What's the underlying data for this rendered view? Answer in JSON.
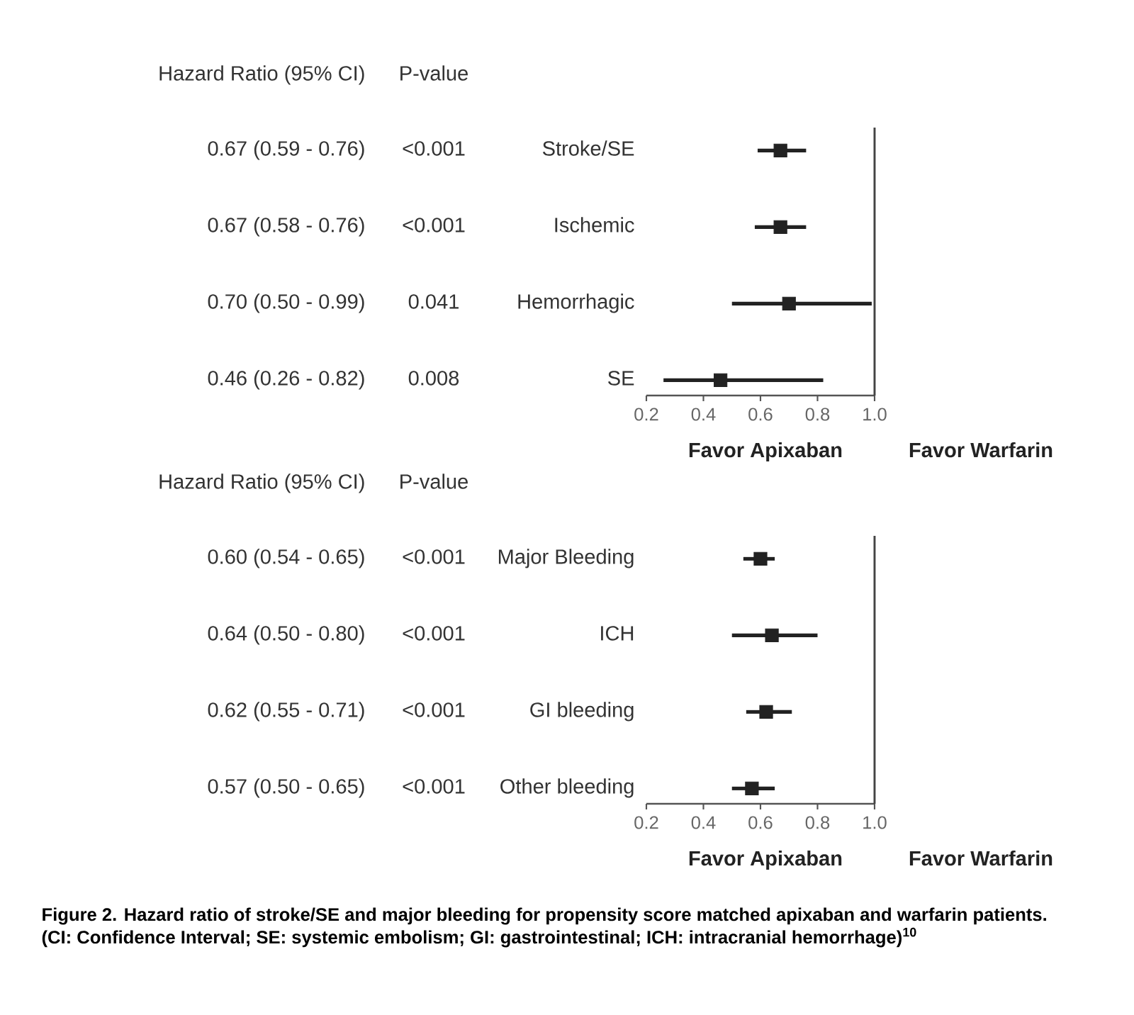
{
  "chart_data": [
    {
      "type": "scatter",
      "orientation": "horizontal",
      "categories": [
        "Stroke/SE",
        "Ischemic",
        "Hemorrhagic",
        "SE"
      ],
      "values": [
        0.67,
        0.67,
        0.7,
        0.46
      ],
      "errors": [
        [
          0.59,
          0.76
        ],
        [
          0.58,
          0.76
        ],
        [
          0.5,
          0.99
        ],
        [
          0.26,
          0.82
        ]
      ],
      "value_labels": [
        "0.67 (0.59 - 0.76)",
        "0.67 (0.58 - 0.76)",
        "0.70 (0.50 - 0.99)",
        "0.46 (0.26 - 0.82)"
      ],
      "color": "#222222",
      "marker": "square",
      "xlim": [
        0.2,
        1.0
      ],
      "xticks": [
        0.2,
        0.4,
        0.6,
        0.8,
        {
          "value": 1.0,
          "label": "1.0"
        }
      ],
      "ref_lines": [
        {
          "axis": "x",
          "value": 1.0,
          "color": "#444444"
        }
      ],
      "annotations": [
        "Hazard Ratio (95% CI)",
        "P-value",
        "<0.001",
        "<0.001",
        "0.041",
        "0.008",
        "Favor Apixaban",
        "Favor Warfarin"
      ]
    },
    {
      "type": "scatter",
      "orientation": "horizontal",
      "categories": [
        "Major Bleeding",
        "ICH",
        "GI bleeding",
        "Other bleeding"
      ],
      "values": [
        0.6,
        0.64,
        0.62,
        0.57
      ],
      "errors": [
        [
          0.54,
          0.65
        ],
        [
          0.5,
          0.8
        ],
        [
          0.55,
          0.71
        ],
        [
          0.5,
          0.65
        ]
      ],
      "value_labels": [
        "0.60 (0.54 - 0.65)",
        "0.64 (0.50 - 0.80)",
        "0.62 (0.55 - 0.71)",
        "0.57 (0.50 - 0.65)"
      ],
      "color": "#222222",
      "marker": "square",
      "xlim": [
        0.2,
        1.0
      ],
      "xticks": [
        0.2,
        0.4,
        0.6,
        0.8,
        {
          "value": 1.0,
          "label": "1.0"
        }
      ],
      "ref_lines": [
        {
          "axis": "x",
          "value": 1.0,
          "color": "#444444"
        }
      ],
      "annotations": [
        "Hazard Ratio (95% CI)",
        "P-value",
        "<0.001",
        "<0.001",
        "<0.001",
        "<0.001",
        "Favor Apixaban",
        "Favor Warfarin",
        "Figure 2. Hazard ratio of stroke/SE and major bleeding for propensity score matched apixaban and warfarin patients.",
        "(CI: Confidence Interval; SE: systemic embolism; GI: gastrointestinal; ICH: intracranial hemorrhage)$^{10}$"
      ]
    }
  ]
}
